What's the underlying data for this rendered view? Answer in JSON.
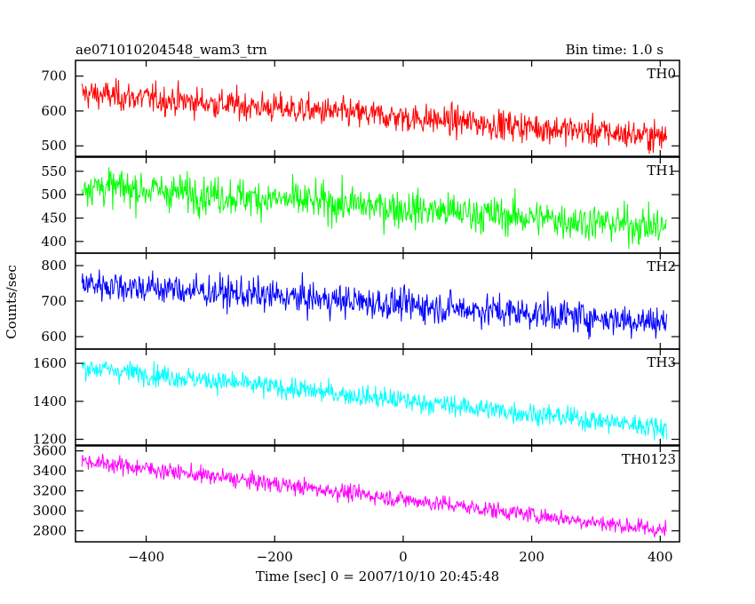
{
  "chart_data": {
    "type": "line",
    "title": "ae071010204548_wam3_trn",
    "subtitle": "Bin time: 1.0 s",
    "xlabel": "Time [sec] 0 = 2007/10/10 20:45:48",
    "ylabel": "Counts/sec",
    "xlim": [
      -510,
      430
    ],
    "xticks": [
      -400,
      -200,
      0,
      200,
      400
    ],
    "x_start": -500,
    "x_end": 410,
    "x_step": 1,
    "panels": [
      {
        "name": "TH0",
        "color": "#ff0000",
        "ylim": [
          470,
          745
        ],
        "yticks": [
          500,
          600,
          700
        ],
        "start": 650,
        "end": 525,
        "noise": 30
      },
      {
        "name": "TH1",
        "color": "#00ff00",
        "ylim": [
          375,
          580
        ],
        "yticks": [
          400,
          450,
          500,
          550
        ],
        "start": 520,
        "end": 430,
        "noise": 28
      },
      {
        "name": "TH2",
        "color": "#0000ff",
        "ylim": [
          565,
          835
        ],
        "yticks": [
          600,
          700,
          800
        ],
        "start": 750,
        "end": 640,
        "noise": 32
      },
      {
        "name": "TH3",
        "color": "#00ffff",
        "ylim": [
          1170,
          1675
        ],
        "yticks": [
          1200,
          1400,
          1600
        ],
        "start": 1580,
        "end": 1260,
        "noise": 40
      },
      {
        "name": "TH0123",
        "color": "#ff00ff",
        "ylim": [
          2690,
          3650
        ],
        "yticks": [
          2800,
          3000,
          3200,
          3400,
          3600
        ],
        "start": 3500,
        "end": 2800,
        "noise": 60
      }
    ]
  }
}
